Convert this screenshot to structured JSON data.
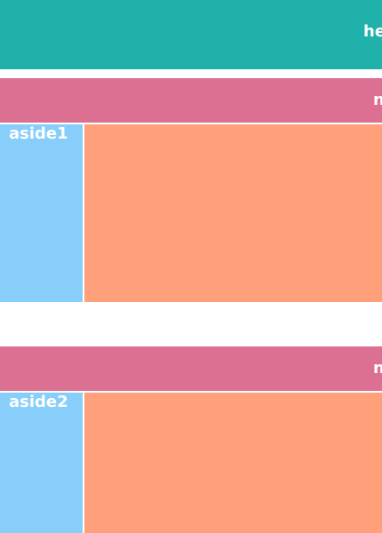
{
  "colors": {
    "header": "#20b2aa",
    "nav": "#db7093",
    "aside": "#87cefa",
    "main": "#ffa07a",
    "text": "#ffffff"
  },
  "header": {
    "label": "he"
  },
  "sections": [
    {
      "nav_label": "n",
      "aside_label": "aside1"
    },
    {
      "nav_label": "n",
      "aside_label": "aside2"
    }
  ]
}
